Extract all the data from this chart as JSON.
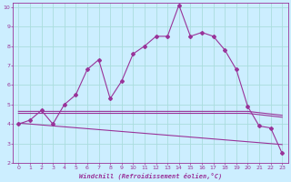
{
  "xlabel": "Windchill (Refroidissement éolien,°C)",
  "xlim": [
    -0.5,
    23.5
  ],
  "ylim": [
    2,
    10.2
  ],
  "xticks": [
    0,
    1,
    2,
    3,
    4,
    5,
    6,
    7,
    8,
    9,
    10,
    11,
    12,
    13,
    14,
    15,
    16,
    17,
    18,
    19,
    20,
    21,
    22,
    23
  ],
  "yticks": [
    2,
    3,
    4,
    5,
    6,
    7,
    8,
    9,
    10
  ],
  "background_color": "#cceeff",
  "grid_color": "#aadddd",
  "line_color": "#993399",
  "line1_x": [
    0,
    1,
    2,
    3,
    4,
    5,
    6,
    7,
    8,
    9,
    10,
    11,
    12,
    13,
    14,
    15,
    16,
    17,
    18,
    19,
    20,
    21,
    22,
    23
  ],
  "line1_y": [
    4.0,
    4.2,
    4.7,
    4.0,
    5.0,
    5.5,
    6.8,
    7.3,
    5.3,
    6.2,
    7.6,
    8.0,
    8.5,
    8.5,
    10.1,
    8.5,
    8.7,
    8.5,
    7.8,
    6.8,
    4.9,
    3.9,
    3.8,
    2.5
  ],
  "line2_x": [
    0,
    20,
    23
  ],
  "line2_y": [
    4.65,
    4.65,
    4.45
  ],
  "line3_x": [
    0,
    20,
    23
  ],
  "line3_y": [
    4.55,
    4.55,
    4.35
  ],
  "line4_x": [
    0,
    23
  ],
  "line4_y": [
    4.05,
    2.95
  ]
}
